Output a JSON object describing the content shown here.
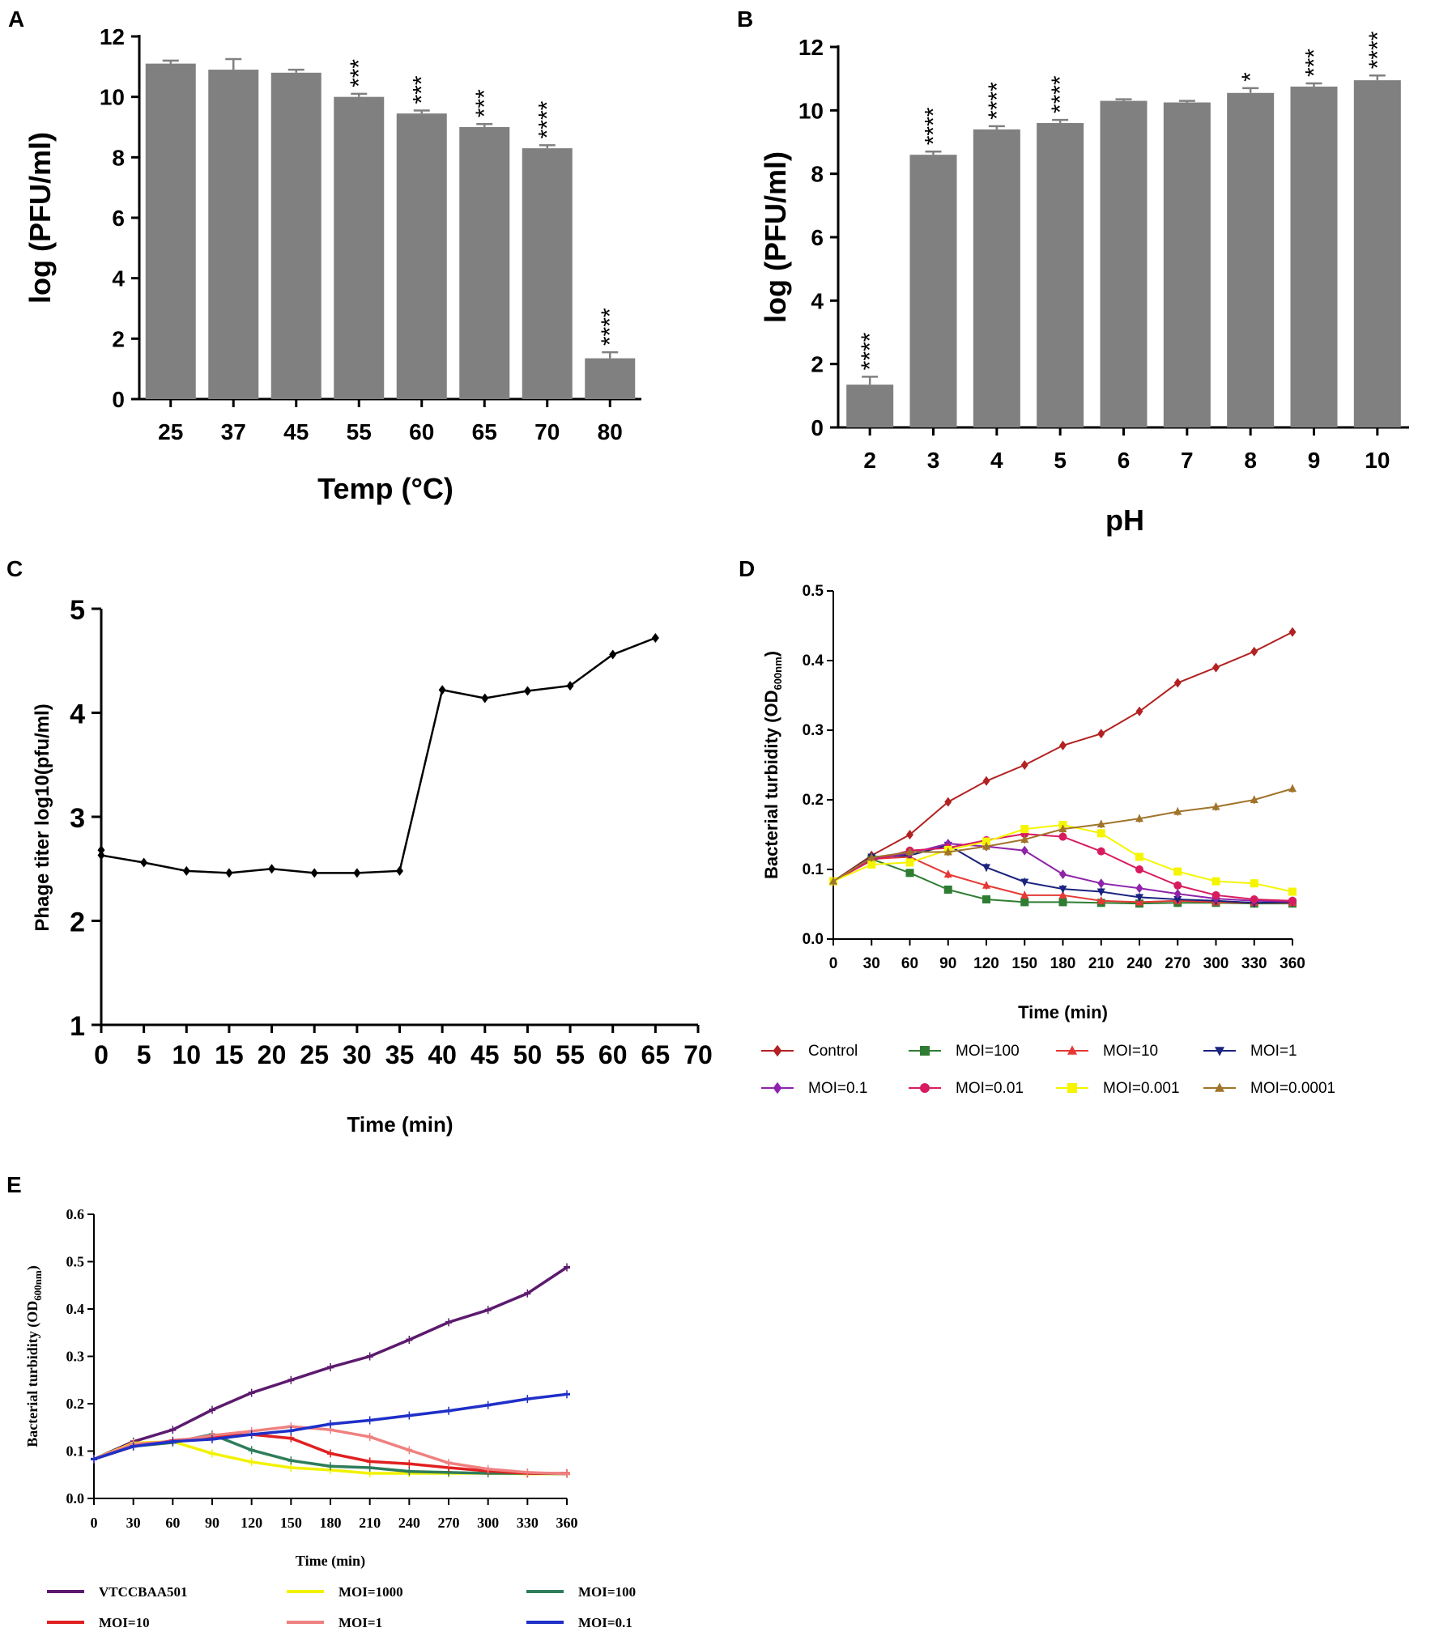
{
  "chart_data": [
    {
      "id": "A",
      "panel_label": "A",
      "type": "bar",
      "title": "",
      "xlabel": "Temp (°C)",
      "ylabel": "log (PFU/ml)",
      "ylim": [
        0,
        12
      ],
      "yticks": [
        "0",
        "2",
        "4",
        "6",
        "8",
        "10",
        "12"
      ],
      "categories": [
        "25",
        "37",
        "45",
        "55",
        "60",
        "65",
        "70",
        "80"
      ],
      "values": [
        11.1,
        10.9,
        10.8,
        10.0,
        9.45,
        9.0,
        8.3,
        1.35
      ],
      "errors": [
        0.1,
        0.35,
        0.1,
        0.1,
        0.1,
        0.1,
        0.1,
        0.2
      ],
      "significance": [
        "",
        "",
        "",
        "***",
        "***",
        "***",
        "****",
        "****"
      ],
      "grid": false,
      "bar_color": "#808080"
    },
    {
      "id": "B",
      "panel_label": "B",
      "type": "bar",
      "title": "",
      "xlabel": "pH",
      "ylabel": "log (PFU/ml)",
      "ylim": [
        0,
        12
      ],
      "yticks": [
        "0",
        "2",
        "4",
        "6",
        "8",
        "10",
        "12"
      ],
      "categories": [
        "2",
        "3",
        "4",
        "5",
        "6",
        "7",
        "8",
        "9",
        "10"
      ],
      "values": [
        1.35,
        8.6,
        9.4,
        9.6,
        10.3,
        10.25,
        10.55,
        10.75,
        10.95
      ],
      "errors": [
        0.25,
        0.1,
        0.1,
        0.1,
        0.05,
        0.05,
        0.15,
        0.1,
        0.15
      ],
      "significance": [
        "****",
        "****",
        "****",
        "****",
        "",
        "",
        "*",
        "***",
        "****"
      ],
      "grid": false,
      "bar_color": "#808080"
    },
    {
      "id": "C",
      "panel_label": "C",
      "type": "line",
      "title": "",
      "xlabel": "Time (min)",
      "ylabel": "Phage titer log10(pfu/ml)",
      "xlim": [
        0,
        70
      ],
      "ylim": [
        1,
        5
      ],
      "xticks": [
        "0",
        "5",
        "10",
        "15",
        "20",
        "25",
        "30",
        "35",
        "40",
        "45",
        "50",
        "55",
        "60",
        "65",
        "70"
      ],
      "yticks": [
        "1",
        "2",
        "3",
        "4",
        "5"
      ],
      "x": [
        0,
        0,
        5,
        10,
        15,
        20,
        25,
        30,
        35,
        40,
        45,
        50,
        55,
        60,
        65
      ],
      "y": [
        2.68,
        2.63,
        2.56,
        2.48,
        2.46,
        2.5,
        2.46,
        2.46,
        2.48,
        4.22,
        4.14,
        4.21,
        4.26,
        4.56,
        4.72
      ],
      "color": "#000000",
      "grid": false
    },
    {
      "id": "D",
      "panel_label": "D",
      "type": "line",
      "title": "",
      "xlabel": "Time (min)",
      "ylabel": "Bacterial turbidity (OD",
      "ylabel_sub": "600nm",
      "ylabel_end": ")",
      "xlim": [
        0,
        360
      ],
      "ylim": [
        0,
        0.5
      ],
      "xticks": [
        "0",
        "30",
        "60",
        "90",
        "120",
        "150",
        "180",
        "210",
        "240",
        "270",
        "300",
        "330",
        "360"
      ],
      "yticks": [
        "0.0",
        "0.1",
        "0.2",
        "0.3",
        "0.4",
        "0.5"
      ],
      "x": [
        0,
        30,
        60,
        90,
        120,
        150,
        180,
        210,
        240,
        270,
        300,
        330,
        360
      ],
      "legend_position": "bottom",
      "series": [
        {
          "name": "Control",
          "color": "#b22222",
          "marker": "diamond",
          "values": [
            0.083,
            0.12,
            0.15,
            0.197,
            0.227,
            0.25,
            0.278,
            0.295,
            0.327,
            0.368,
            0.39,
            0.413,
            0.441
          ]
        },
        {
          "name": "MOI=100",
          "color": "#2e7d32",
          "marker": "square",
          "values": [
            0.083,
            0.115,
            0.095,
            0.071,
            0.057,
            0.053,
            0.053,
            0.052,
            0.051,
            0.052,
            0.052,
            0.051,
            0.051
          ]
        },
        {
          "name": "MOI=10",
          "color": "#e53935",
          "marker": "triangle",
          "values": [
            0.083,
            0.115,
            0.118,
            0.093,
            0.077,
            0.063,
            0.063,
            0.055,
            0.053,
            0.055,
            0.053,
            0.052,
            0.052
          ]
        },
        {
          "name": "MOI=1",
          "color": "#1a237e",
          "marker": "triangle-down",
          "values": [
            0.083,
            0.118,
            0.12,
            0.135,
            0.103,
            0.082,
            0.072,
            0.068,
            0.06,
            0.057,
            0.055,
            0.052,
            0.053
          ]
        },
        {
          "name": "MOI=0.1",
          "color": "#8e24aa",
          "marker": "diamond",
          "values": [
            0.083,
            0.115,
            0.123,
            0.137,
            0.133,
            0.127,
            0.093,
            0.08,
            0.073,
            0.065,
            0.058,
            0.055,
            0.054
          ]
        },
        {
          "name": "MOI=0.01",
          "color": "#d81b60",
          "marker": "circle",
          "values": [
            0.083,
            0.113,
            0.127,
            0.131,
            0.142,
            0.151,
            0.147,
            0.126,
            0.1,
            0.077,
            0.063,
            0.057,
            0.055
          ]
        },
        {
          "name": "MOI=0.001",
          "color": "#f5f500",
          "marker": "square",
          "values": [
            0.083,
            0.107,
            0.11,
            0.128,
            0.14,
            0.158,
            0.164,
            0.152,
            0.118,
            0.097,
            0.083,
            0.08,
            0.068
          ]
        },
        {
          "name": "MOI=0.0001",
          "color": "#a0742a",
          "marker": "triangle",
          "values": [
            0.083,
            0.117,
            0.125,
            0.125,
            0.133,
            0.143,
            0.158,
            0.165,
            0.173,
            0.183,
            0.19,
            0.2,
            0.216
          ]
        }
      ],
      "grid": false
    },
    {
      "id": "E",
      "panel_label": "E",
      "type": "line",
      "title": "",
      "xlabel": "Time (min)",
      "ylabel": "Bacterial turbidity (OD",
      "ylabel_sub": "600nm",
      "ylabel_end": ")",
      "xlim": [
        0,
        360
      ],
      "ylim": [
        0,
        0.6
      ],
      "xticks": [
        "0",
        "30",
        "60",
        "90",
        "120",
        "150",
        "180",
        "210",
        "240",
        "270",
        "300",
        "330",
        "360"
      ],
      "yticks": [
        "0.0",
        "0.1",
        "0.2",
        "0.3",
        "0.4",
        "0.5",
        "0.6"
      ],
      "x": [
        0,
        30,
        60,
        90,
        120,
        150,
        180,
        210,
        240,
        270,
        300,
        330,
        360
      ],
      "legend_position": "bottom",
      "series": [
        {
          "name": "VTCCBAA501",
          "color": "#5c1a6e",
          "values": [
            0.083,
            0.12,
            0.145,
            0.187,
            0.223,
            0.25,
            0.277,
            0.3,
            0.335,
            0.372,
            0.398,
            0.433,
            0.488
          ]
        },
        {
          "name": "MOI=1000",
          "color": "#f2f200",
          "values": [
            0.083,
            0.117,
            0.12,
            0.095,
            0.077,
            0.065,
            0.06,
            0.053,
            0.053,
            0.053,
            0.053,
            0.052,
            0.052
          ]
        },
        {
          "name": "MOI=100",
          "color": "#2e7d5b",
          "values": [
            0.083,
            0.11,
            0.118,
            0.135,
            0.102,
            0.08,
            0.068,
            0.065,
            0.057,
            0.055,
            0.053,
            0.053,
            0.052
          ]
        },
        {
          "name": "MOI=10",
          "color": "#e02020",
          "values": [
            0.083,
            0.11,
            0.122,
            0.13,
            0.135,
            0.127,
            0.095,
            0.078,
            0.073,
            0.065,
            0.058,
            0.053,
            0.053
          ]
        },
        {
          "name": "MOI=1",
          "color": "#f08080",
          "values": [
            0.083,
            0.115,
            0.12,
            0.133,
            0.142,
            0.152,
            0.145,
            0.13,
            0.102,
            0.075,
            0.062,
            0.055,
            0.052
          ]
        },
        {
          "name": "MOI=0.1",
          "color": "#1f2fc8",
          "values": [
            0.083,
            0.11,
            0.12,
            0.125,
            0.135,
            0.143,
            0.157,
            0.165,
            0.175,
            0.185,
            0.197,
            0.21,
            0.22
          ]
        }
      ],
      "grid": false
    }
  ]
}
